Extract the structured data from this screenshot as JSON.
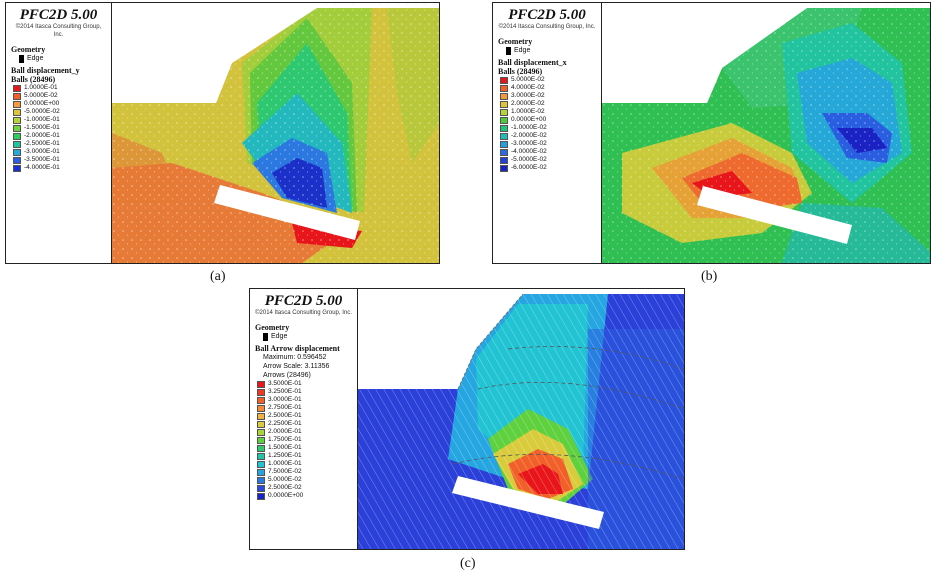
{
  "panels": {
    "a": {
      "title": "PFC2D 5.00",
      "copyright": "©2014 Itasca Consulting Group, Inc.",
      "geometry_label": "Geometry",
      "edge_label": "Edge",
      "quantity_label": "Ball displacement_y",
      "count_label": "Balls (28496)",
      "caption": "(a)",
      "scale": [
        {
          "label": "1.0000E-01",
          "color": "#e8151b"
        },
        {
          "label": "5.0000E-02",
          "color": "#f2602a"
        },
        {
          "label": "0.0000E+00",
          "color": "#f39a3c"
        },
        {
          "label": "-5.0000E-02",
          "color": "#d9c43c"
        },
        {
          "label": "-1.0000E-01",
          "color": "#b6d33a"
        },
        {
          "label": "-1.5000E-01",
          "color": "#6fd23e"
        },
        {
          "label": "-2.0000E-01",
          "color": "#2ecc5a"
        },
        {
          "label": "-2.5000E-01",
          "color": "#22c49a"
        },
        {
          "label": "-3.0000E-01",
          "color": "#25a9d6"
        },
        {
          "label": "-3.5000E-01",
          "color": "#2a5ee0"
        },
        {
          "label": "-4.0000E-01",
          "color": "#1a2fd0"
        }
      ]
    },
    "b": {
      "title": "PFC2D 5.00",
      "copyright": "©2014 Itasca Consulting Group, Inc.",
      "geometry_label": "Geometry",
      "edge_label": "Edge",
      "quantity_label": "Ball displacement_x",
      "count_label": "Balls (28496)",
      "caption": "(b)",
      "scale": [
        {
          "label": "5.0000E-02",
          "color": "#e8151b"
        },
        {
          "label": "4.0000E-02",
          "color": "#f2602a"
        },
        {
          "label": "3.0000E-02",
          "color": "#f39a3c"
        },
        {
          "label": "2.0000E-02",
          "color": "#d9c43c"
        },
        {
          "label": "1.0000E-02",
          "color": "#b6d33a"
        },
        {
          "label": "0.0000E+00",
          "color": "#4ccc3c"
        },
        {
          "label": "-1.0000E-02",
          "color": "#22c47a"
        },
        {
          "label": "-2.0000E-02",
          "color": "#22bcb6"
        },
        {
          "label": "-3.0000E-02",
          "color": "#25a0dc"
        },
        {
          "label": "-4.0000E-02",
          "color": "#2a6ae0"
        },
        {
          "label": "-5.0000E-02",
          "color": "#2040d6"
        },
        {
          "label": "-6.0000E-02",
          "color": "#1a22c4"
        }
      ]
    },
    "c": {
      "title": "PFC2D 5.00",
      "copyright": "©2014 Itasca Consulting Group, Inc.",
      "geometry_label": "Geometry",
      "edge_label": "Edge",
      "quantity_label": "Ball Arrow displacement",
      "maximum_label": "Maximum: 0.596452",
      "arrow_scale_label": "Arrow Scale: 3.11356",
      "arrows_label": "Arrows (28496)",
      "caption": "(c)",
      "scale": [
        {
          "label": "3.5000E-01",
          "color": "#e8151b"
        },
        {
          "label": "3.2500E-01",
          "color": "#ee3a22"
        },
        {
          "label": "3.0000E-01",
          "color": "#f2602a"
        },
        {
          "label": "2.7500E-01",
          "color": "#f48a34"
        },
        {
          "label": "2.5000E-01",
          "color": "#f0b23c"
        },
        {
          "label": "2.2500E-01",
          "color": "#d9cc3c"
        },
        {
          "label": "2.0000E-01",
          "color": "#a8d63a"
        },
        {
          "label": "1.7500E-01",
          "color": "#5fd03e"
        },
        {
          "label": "1.5000E-01",
          "color": "#2ec86e"
        },
        {
          "label": "1.2500E-01",
          "color": "#22c4a4"
        },
        {
          "label": "1.0000E-01",
          "color": "#22c4d4"
        },
        {
          "label": "7.5000E-02",
          "color": "#25a4e0"
        },
        {
          "label": "5.0000E-02",
          "color": "#2a78e0"
        },
        {
          "label": "2.5000E-02",
          "color": "#2a4ade"
        },
        {
          "label": "0.0000E+00",
          "color": "#1a22c4"
        }
      ]
    }
  }
}
